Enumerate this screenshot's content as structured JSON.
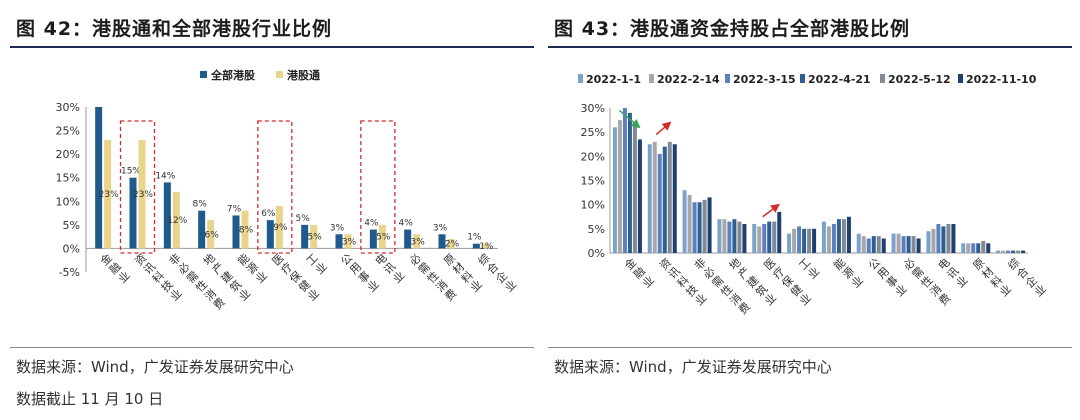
{
  "left": {
    "title": "图 42：港股通和全部港股行业比例",
    "source": "数据来源：Wind，广发证券发展研究中心",
    "note": "数据截止 11 月 10 日"
  },
  "right": {
    "title": "图 43：港股通资金持股占全部港股比例",
    "source": "数据来源：Wind，广发证券发展研究中心"
  },
  "colors": {
    "all_hk": "#1f5a8c",
    "connect": "#e8d48a",
    "dashed_box": "#d42b2b",
    "series": [
      "#7aa3cc",
      "#a7a7a7",
      "#5b7fbf",
      "#2e5f8f",
      "#7f8a96",
      "#1f3f6e"
    ],
    "green_arrow": "#3aa35a",
    "red_arrow": "#d42b2b"
  },
  "chart_data": [
    {
      "type": "bar",
      "categories": [
        "金融业",
        "资讯科技业",
        "非必需性消费",
        "地产建筑业",
        "能源业",
        "医疗保健业",
        "工业",
        "公用事业",
        "电讯业",
        "必需性消费",
        "原材料业",
        "综合企业"
      ],
      "series": [
        {
          "name": "全部港股",
          "values": [
            30,
            15,
            14,
            8,
            7,
            6,
            5,
            3,
            4,
            4,
            3,
            1
          ],
          "labels": [
            "",
            "15%",
            "14%",
            "8%",
            "7%",
            "6%",
            "5%",
            "3%",
            "4%",
            "4%",
            "3%",
            "1%"
          ]
        },
        {
          "name": "港股通",
          "values": [
            23,
            23,
            12,
            6,
            8,
            9,
            5,
            3,
            5,
            3,
            2,
            1
          ],
          "labels": [
            "23%",
            "23%",
            "12%",
            "6%",
            "8%",
            "9%",
            "5%",
            "3%",
            "5%",
            "3%",
            "2%",
            "1%"
          ]
        }
      ],
      "ylim": [
        -5,
        30
      ],
      "yticks": [
        "-5%",
        "0%",
        "5%",
        "10%",
        "15%",
        "20%",
        "25%",
        "30%"
      ],
      "legend": "top-center",
      "highlighted_categories": [
        "资讯科技业",
        "医疗保健业",
        "电讯业"
      ]
    },
    {
      "type": "bar",
      "categories": [
        "金融业",
        "资讯科技业",
        "非必需性消费",
        "地产建筑业",
        "医疗保健业",
        "工业",
        "能源业",
        "公用事业",
        "必需性消费",
        "电讯业",
        "原材料业",
        "综合企业"
      ],
      "series": [
        {
          "name": "2022-1-1",
          "values": [
            26,
            22.5,
            13,
            7,
            6,
            4,
            6.5,
            4,
            4,
            4.5,
            2,
            0.5
          ]
        },
        {
          "name": "2022-2-14",
          "values": [
            27.5,
            23,
            12,
            7,
            5.5,
            5,
            5.5,
            3.5,
            4,
            5,
            2,
            0.5
          ]
        },
        {
          "name": "2022-3-15",
          "values": [
            30,
            20.5,
            10.5,
            6.5,
            6,
            5.5,
            6,
            3,
            3.5,
            6,
            2,
            0.5
          ]
        },
        {
          "name": "2022-4-21",
          "values": [
            29,
            22,
            10.5,
            7,
            6.5,
            5,
            7,
            3.5,
            3.5,
            5.5,
            2,
            0.5
          ]
        },
        {
          "name": "2022-5-12",
          "values": [
            27,
            23,
            11,
            6.5,
            6.5,
            5,
            7,
            3.5,
            3.5,
            6,
            2.5,
            0.5
          ]
        },
        {
          "name": "2022-11-10",
          "values": [
            23.5,
            22.5,
            11.5,
            6,
            8.5,
            5,
            7.5,
            3,
            3,
            6,
            2,
            0.5
          ]
        }
      ],
      "ylim": [
        0,
        30
      ],
      "yticks": [
        "0%",
        "5%",
        "10%",
        "15%",
        "20%",
        "25%",
        "30%"
      ],
      "legend": "top"
    }
  ]
}
